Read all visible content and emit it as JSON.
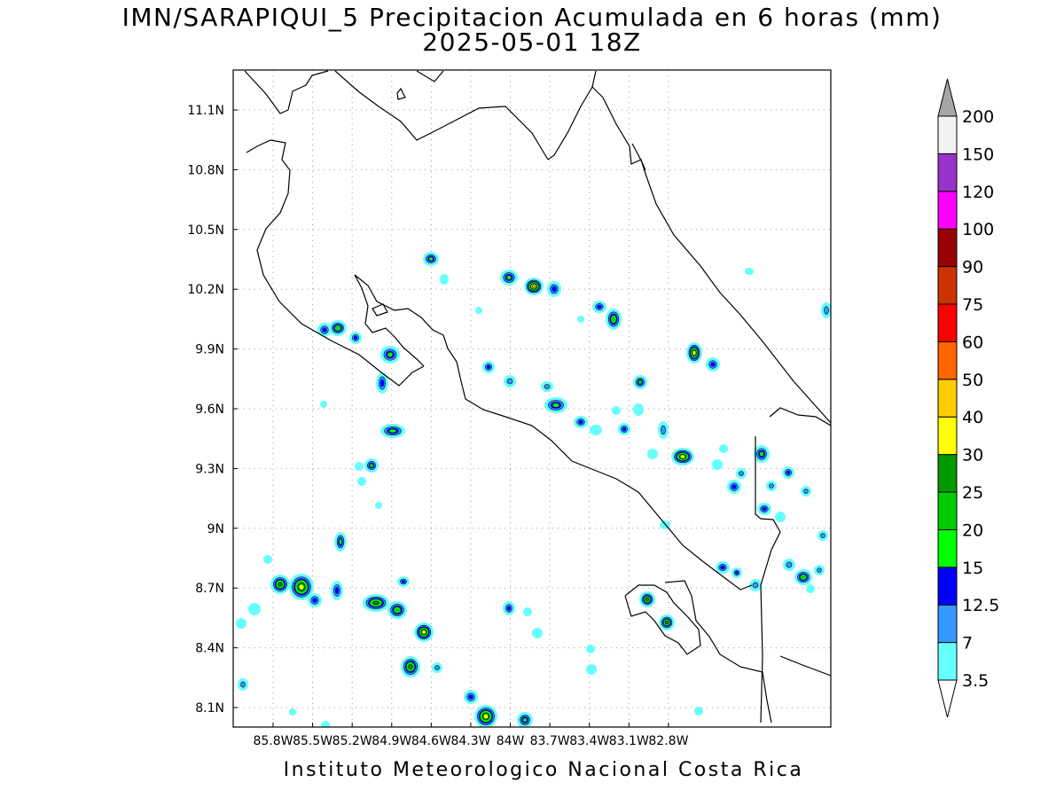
{
  "title": {
    "line1": "IMN/SARAPIQUI_5 Precipitacion Acumulada en 6 horas (mm)",
    "line2": "2025-05-01 18Z"
  },
  "footer": "Instituto Meteorologico Nacional Costa Rica",
  "map": {
    "lon_ticks": [
      "85.8W",
      "85.5W",
      "85.2W",
      "84.9W",
      "84.6W",
      "84.3W",
      "84W",
      "83.7W",
      "83.4W",
      "83.1W",
      "82.8W"
    ],
    "lat_ticks": [
      "11.1N",
      "10.8N",
      "10.5N",
      "10.2N",
      "9.9N",
      "9.6N",
      "9.3N",
      "9N",
      "8.7N",
      "8.4N",
      "8.1N"
    ],
    "grid": true
  },
  "colorbar": {
    "levels": [
      "3.5",
      "7",
      "12.5",
      "15",
      "20",
      "25",
      "30",
      "40",
      "50",
      "60",
      "75",
      "90",
      "100",
      "120",
      "150",
      "200"
    ],
    "colors": [
      "#66ffff",
      "#3399ff",
      "#0000ff",
      "#00ff00",
      "#00cc00",
      "#009900",
      "#ffff00",
      "#ffcc00",
      "#ff6600",
      "#ff0000",
      "#cc3300",
      "#990000",
      "#ff00ff",
      "#9933cc",
      "#f2f2f2"
    ],
    "over_color": "#a6a6a6",
    "under_color": "#ffffff"
  }
}
